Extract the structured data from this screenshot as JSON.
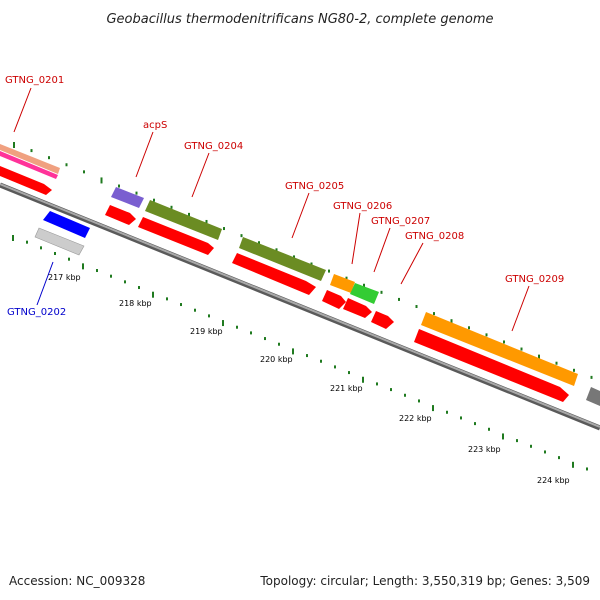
{
  "title": "Geobacillus thermodenitrificans NG80-2, complete genome",
  "footer": {
    "accession": "Accession: NC_009328",
    "summary": "Topology: circular; Length: 3,550,319 bp; Genes: 3,509"
  },
  "colors": {
    "label_red": "#cc0000",
    "label_blue": "#0000cc",
    "backbone": "#8a8a8a",
    "tick": "#1f7a1f",
    "cds": "#ff0000",
    "pink": "#ff3399",
    "salmon": "#f0a080",
    "violet": "#7a5fd0",
    "olive": "#6b8c23",
    "orange": "#ff9900",
    "green": "#33cc33",
    "blue": "#0000ff",
    "gray": "#cccccc"
  },
  "scale_labels": [
    "217 kbp",
    "218 kbp",
    "219 kbp",
    "220 kbp",
    "221 kbp",
    "222 kbp",
    "223 kbp",
    "224 kbp"
  ],
  "genes": [
    {
      "name": "GTNG_0201",
      "strand": "+",
      "color": "#ff3399"
    },
    {
      "name": "GTNG_0202",
      "strand": "-",
      "color": "#0000ff"
    },
    {
      "name": "acpS",
      "strand": "+",
      "color": "#7a5fd0"
    },
    {
      "name": "GTNG_0204",
      "strand": "+",
      "color": "#6b8c23"
    },
    {
      "name": "GTNG_0205",
      "strand": "+",
      "color": "#6b8c23"
    },
    {
      "name": "GTNG_0206",
      "strand": "+",
      "color": "#ff9900"
    },
    {
      "name": "GTNG_0207",
      "strand": "+",
      "color": "#33cc33"
    },
    {
      "name": "GTNG_0208",
      "strand": "+",
      "color": "#ff0000"
    },
    {
      "name": "GTNG_0209",
      "strand": "+",
      "color": "#ff9900"
    }
  ]
}
